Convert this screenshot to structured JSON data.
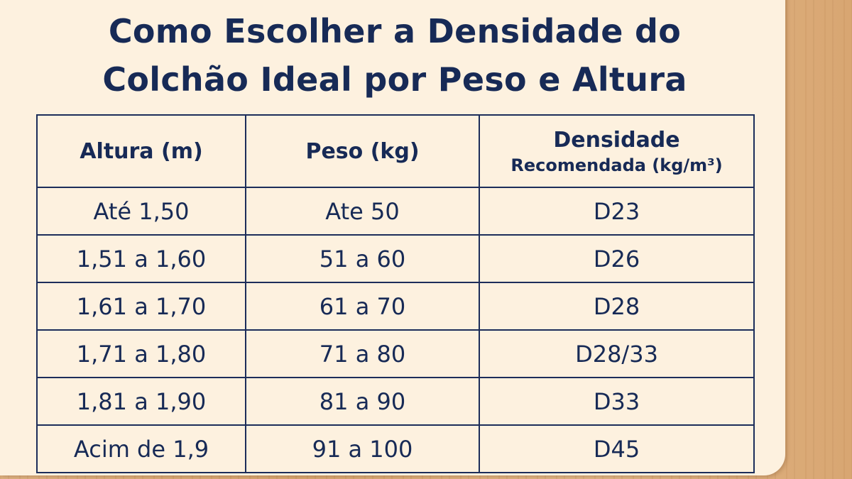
{
  "title": {
    "line1": "Como Escolher a Densidade do",
    "line2": "Colchão Ideal por Peso e Altura"
  },
  "table": {
    "headers": [
      "Altura (m)",
      "Peso (kg)",
      "Densidade",
      "Recomendada (kg/m³)"
    ],
    "rows": [
      [
        "Até 1,50",
        "Ate 50",
        "D23"
      ],
      [
        "1,51 a 1,60",
        "51 a 60",
        "D26"
      ],
      [
        "1,61 a 1,70",
        "61 a 70",
        "D28"
      ],
      [
        "1,71 a 1,80",
        "71 a 80",
        "D28/33"
      ],
      [
        "1,81 a 1,90",
        "81 a 90",
        "D33"
      ],
      [
        "Acim de 1,9",
        "91 a 100",
        "D45"
      ]
    ]
  },
  "colors": {
    "text": "#172a56",
    "card": "#fdf1df",
    "border": "#1c2d5a",
    "wood": "#dcae7c"
  }
}
